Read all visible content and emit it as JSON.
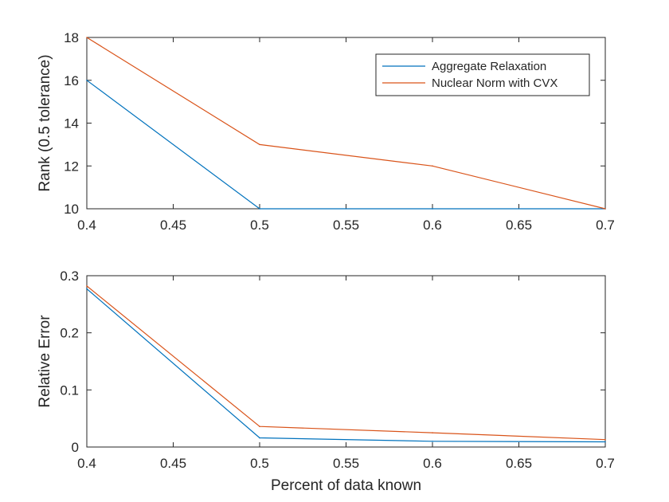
{
  "chart_data": [
    {
      "type": "line",
      "title": "",
      "xlabel": "",
      "ylabel": "Rank (0.5 tolerance)",
      "xlim": [
        0.4,
        0.7
      ],
      "ylim": [
        10,
        18
      ],
      "xticks": [
        "0.4",
        "0.45",
        "0.5",
        "0.55",
        "0.6",
        "0.65",
        "0.7"
      ],
      "yticks": [
        "10",
        "12",
        "14",
        "16",
        "18"
      ],
      "grid": false,
      "legend_position": "top-right",
      "x": [
        0.4,
        0.5,
        0.6,
        0.7
      ],
      "series": [
        {
          "name": "Aggregate Relaxation",
          "color": "#0072bd",
          "values": [
            16,
            10,
            10,
            10
          ]
        },
        {
          "name": "Nuclear Norm with CVX",
          "color": "#d95319",
          "values": [
            18,
            13,
            12,
            10
          ]
        }
      ]
    },
    {
      "type": "line",
      "title": "",
      "xlabel": "Percent of data known",
      "ylabel": "Relative Error",
      "xlim": [
        0.4,
        0.7
      ],
      "ylim": [
        0,
        0.3
      ],
      "xticks": [
        "0.4",
        "0.45",
        "0.5",
        "0.55",
        "0.6",
        "0.65",
        "0.7"
      ],
      "yticks": [
        "0",
        "0.1",
        "0.2",
        "0.3"
      ],
      "grid": false,
      "x": [
        0.4,
        0.5,
        0.6,
        0.7
      ],
      "series": [
        {
          "color": "#0072bd",
          "values": [
            0.277,
            0.016,
            0.01,
            0.009
          ]
        },
        {
          "color": "#d95319",
          "values": [
            0.282,
            0.036,
            0.025,
            0.013
          ]
        }
      ]
    }
  ]
}
